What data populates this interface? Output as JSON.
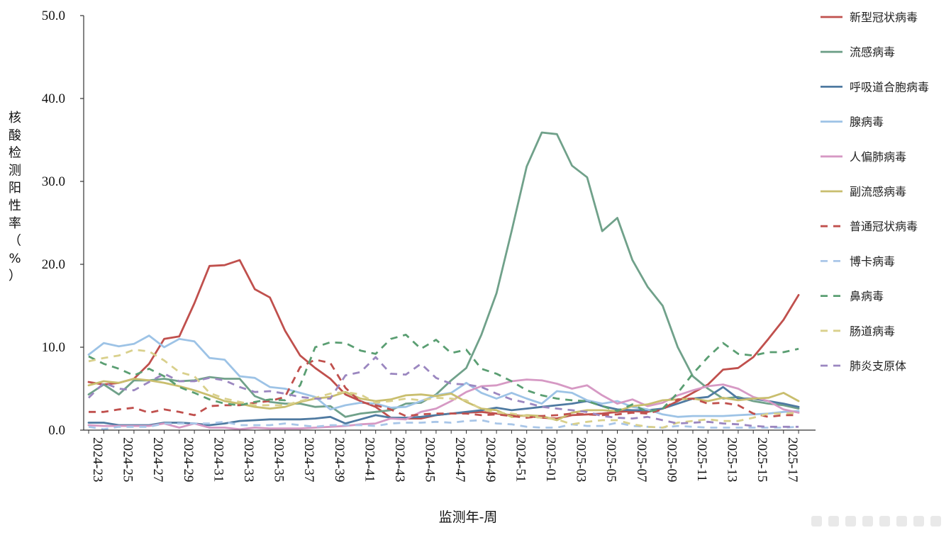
{
  "chart_data": {
    "type": "line",
    "title": "",
    "xlabel": "监测年-周",
    "ylabel": "核酸检测阳性率（%）",
    "ylim": [
      0,
      50
    ],
    "yticks": [
      "0.0",
      "10.0",
      "20.0",
      "30.0",
      "40.0",
      "50.0"
    ],
    "grid": false,
    "legend": "right",
    "xtick_labels": [
      "2024-23",
      "2024-25",
      "2024-27",
      "2024-29",
      "2024-31",
      "2024-33",
      "2024-35",
      "2024-37",
      "2024-39",
      "2024-41",
      "2024-43",
      "2024-45",
      "2024-47",
      "2024-49",
      "2024-51",
      "2025-01",
      "2025-03",
      "2025-05",
      "2025-07",
      "2025-09",
      "2025-11",
      "2025-13",
      "2025-15",
      "2025-17"
    ],
    "x": [
      "2024-23",
      "2024-24",
      "2024-25",
      "2024-26",
      "2024-27",
      "2024-28",
      "2024-29",
      "2024-30",
      "2024-31",
      "2024-32",
      "2024-33",
      "2024-34",
      "2024-35",
      "2024-36",
      "2024-37",
      "2024-38",
      "2024-39",
      "2024-40",
      "2024-41",
      "2024-42",
      "2024-43",
      "2024-44",
      "2024-45",
      "2024-46",
      "2024-47",
      "2024-48",
      "2024-49",
      "2024-50",
      "2024-51",
      "2024-52",
      "2025-01",
      "2025-02",
      "2025-03",
      "2025-04",
      "2025-05",
      "2025-06",
      "2025-07",
      "2025-08",
      "2025-09",
      "2025-10",
      "2025-11",
      "2025-12",
      "2025-13",
      "2025-14",
      "2025-15",
      "2025-16",
      "2025-17",
      "2025-18"
    ],
    "series": [
      {
        "name": "新型冠状病毒",
        "color": "#c0504d",
        "dash": false,
        "values": [
          5.8,
          5.5,
          5.7,
          6.2,
          8.0,
          11.0,
          11.3,
          15.3,
          19.8,
          19.9,
          20.5,
          17.0,
          16.0,
          12.0,
          9.0,
          7.5,
          6.2,
          4.3,
          3.5,
          2.8,
          1.5,
          1.4,
          1.4,
          1.8,
          2.0,
          2.1,
          2.2,
          2.0,
          1.8,
          1.7,
          1.5,
          1.4,
          1.8,
          1.9,
          2.0,
          2.2,
          2.3,
          2.2,
          2.6,
          3.5,
          4.5,
          5.5,
          7.3,
          7.5,
          8.8,
          11.0,
          13.3,
          16.3
        ]
      },
      {
        "name": "流感病毒",
        "color": "#70a18a",
        "dash": false,
        "values": [
          4.3,
          5.5,
          4.3,
          6.0,
          6.0,
          6.2,
          5.9,
          6.0,
          6.4,
          6.2,
          6.2,
          4.1,
          3.4,
          3.2,
          3.2,
          2.8,
          2.9,
          1.6,
          2.0,
          2.2,
          2.4,
          3.2,
          3.3,
          4.3,
          6.0,
          7.5,
          11.5,
          16.5,
          24.0,
          31.8,
          35.9,
          35.7,
          31.9,
          30.5,
          24.0,
          25.6,
          20.5,
          17.3,
          15.0,
          10.0,
          6.5,
          5.0,
          3.8,
          4.0,
          3.5,
          3.2,
          3.0,
          2.6
        ]
      },
      {
        "name": "呼吸道合胞病毒",
        "color": "#4f7aa1",
        "dash": false,
        "values": [
          0.9,
          0.9,
          0.6,
          0.6,
          0.6,
          0.9,
          0.9,
          0.8,
          0.6,
          0.8,
          1.1,
          1.2,
          1.3,
          1.3,
          1.3,
          1.4,
          1.6,
          0.8,
          1.3,
          1.8,
          1.5,
          1.5,
          1.6,
          1.8,
          2.0,
          2.2,
          2.4,
          2.7,
          2.4,
          2.6,
          2.8,
          3.0,
          3.2,
          3.5,
          2.9,
          2.5,
          2.4,
          2.4,
          2.6,
          3.2,
          3.8,
          4.0,
          5.2,
          3.8,
          3.8,
          3.5,
          3.2,
          2.8
        ]
      },
      {
        "name": "腺病毒",
        "color": "#9dc3e6",
        "dash": false,
        "values": [
          9.1,
          10.5,
          10.1,
          10.4,
          11.4,
          10.0,
          11.0,
          10.7,
          8.7,
          8.5,
          6.5,
          6.3,
          5.2,
          5.0,
          4.5,
          4.0,
          2.5,
          3.0,
          3.3,
          3.2,
          2.7,
          2.8,
          3.5,
          4.2,
          4.5,
          5.7,
          4.5,
          3.8,
          4.5,
          3.8,
          3.2,
          4.7,
          4.5,
          3.6,
          3.2,
          3.5,
          2.8,
          2.5,
          1.9,
          1.6,
          1.7,
          1.7,
          1.7,
          1.8,
          1.9,
          2.0,
          2.2,
          2.3
        ]
      },
      {
        "name": "人偏肺病毒",
        "color": "#d699c4",
        "dash": false,
        "values": [
          0.6,
          0.5,
          0.5,
          0.5,
          0.5,
          0.8,
          0.3,
          0.8,
          0.3,
          0.3,
          0.1,
          0.3,
          0.2,
          0.2,
          0.2,
          0.3,
          0.4,
          0.5,
          0.7,
          0.8,
          1.4,
          1.3,
          2.2,
          2.6,
          3.5,
          4.6,
          5.3,
          5.4,
          5.9,
          6.1,
          6.0,
          5.6,
          5.0,
          5.4,
          4.2,
          3.2,
          3.7,
          2.9,
          3.3,
          4.2,
          4.8,
          5.3,
          5.5,
          5.0,
          4.0,
          3.5,
          2.5,
          2.1
        ]
      },
      {
        "name": "副流感病毒",
        "color": "#c9be6e",
        "dash": false,
        "values": [
          5.4,
          5.9,
          5.7,
          6.2,
          6.0,
          5.7,
          5.3,
          4.8,
          4.2,
          3.5,
          3.2,
          2.8,
          2.6,
          2.8,
          3.4,
          3.8,
          4.0,
          4.6,
          3.8,
          3.5,
          3.7,
          4.2,
          4.3,
          4.1,
          4.4,
          3.4,
          2.6,
          2.4,
          1.6,
          1.8,
          1.7,
          1.2,
          2.1,
          2.4,
          2.4,
          2.3,
          2.9,
          3.1,
          3.6,
          3.7,
          3.8,
          3.5,
          3.9,
          3.6,
          3.8,
          3.9,
          4.5,
          3.5
        ]
      },
      {
        "name": "普通冠状病毒",
        "color": "#c0504d",
        "dash": true,
        "values": [
          2.2,
          2.2,
          2.5,
          2.7,
          2.1,
          2.5,
          2.2,
          1.8,
          2.9,
          3.0,
          3.0,
          3.3,
          3.5,
          4.0,
          7.6,
          8.5,
          8.1,
          5.1,
          3.4,
          3.0,
          2.5,
          1.7,
          1.9,
          2.0,
          2.0,
          2.0,
          1.8,
          1.9,
          1.7,
          1.5,
          1.7,
          1.8,
          2.0,
          1.9,
          1.8,
          1.9,
          2.1,
          2.0,
          2.5,
          3.7,
          3.8,
          3.2,
          3.3,
          3.0,
          2.0,
          1.6,
          1.8,
          1.8
        ]
      },
      {
        "name": "博卡病毒",
        "color": "#a9c6e8",
        "dash": true,
        "values": [
          0.4,
          0.1,
          0.4,
          0.4,
          0.4,
          0.8,
          0.8,
          0.8,
          0.8,
          1.0,
          0.6,
          0.6,
          0.6,
          0.8,
          0.6,
          0.4,
          0.6,
          0.6,
          0.6,
          0.5,
          0.8,
          0.9,
          0.9,
          1.0,
          0.9,
          1.1,
          1.2,
          0.8,
          0.7,
          0.4,
          0.3,
          0.3,
          0.7,
          0.5,
          0.5,
          0.9,
          0.5,
          0.4,
          0.3,
          0.5,
          0.4,
          0.3,
          0.3,
          0.3,
          0.3,
          0.3,
          0.3,
          0.4
        ]
      },
      {
        "name": "鼻病毒",
        "color": "#5a9e72",
        "dash": true,
        "values": [
          8.9,
          8.0,
          7.4,
          6.6,
          7.4,
          6.5,
          5.2,
          4.5,
          3.7,
          3.2,
          3.0,
          3.4,
          3.7,
          3.6,
          5.4,
          10.0,
          10.6,
          10.5,
          9.6,
          9.2,
          11.0,
          11.5,
          9.8,
          10.9,
          9.3,
          9.7,
          7.4,
          6.8,
          5.9,
          4.8,
          4.2,
          3.8,
          3.6,
          3.5,
          2.9,
          2.3,
          3.1,
          2.2,
          2.6,
          4.5,
          6.8,
          8.8,
          10.5,
          9.2,
          9.0,
          9.4,
          9.4,
          9.8
        ]
      },
      {
        "name": "肠道病毒",
        "color": "#d9d08c",
        "dash": true,
        "values": [
          8.3,
          8.7,
          9.0,
          9.7,
          9.5,
          8.4,
          7.0,
          6.5,
          4.5,
          3.8,
          3.4,
          3.0,
          3.0,
          3.0,
          3.5,
          3.9,
          4.4,
          4.6,
          4.3,
          3.3,
          3.5,
          3.8,
          3.6,
          3.9,
          3.8,
          3.6,
          2.5,
          2.1,
          2.0,
          1.7,
          1.5,
          1.3,
          0.7,
          1.0,
          1.2,
          1.2,
          0.7,
          0.4,
          0.3,
          0.9,
          1.1,
          1.3,
          1.1,
          1.1,
          1.5,
          2.0,
          2.0,
          2.1
        ]
      },
      {
        "name": "肺炎支原体",
        "color": "#9b87c0",
        "dash": true,
        "values": [
          3.9,
          5.7,
          5.0,
          4.8,
          5.8,
          6.8,
          5.9,
          5.9,
          6.3,
          6.0,
          5.2,
          4.6,
          4.7,
          4.4,
          4.0,
          3.8,
          3.8,
          6.6,
          7.0,
          8.8,
          6.8,
          6.7,
          8.0,
          6.3,
          5.6,
          5.5,
          5.2,
          4.4,
          3.7,
          3.3,
          2.8,
          2.6,
          2.4,
          2.2,
          1.7,
          1.5,
          1.4,
          1.6,
          1.2,
          0.8,
          0.9,
          1.0,
          0.8,
          0.7,
          0.5,
          0.4,
          0.4,
          0.4
        ]
      }
    ]
  }
}
